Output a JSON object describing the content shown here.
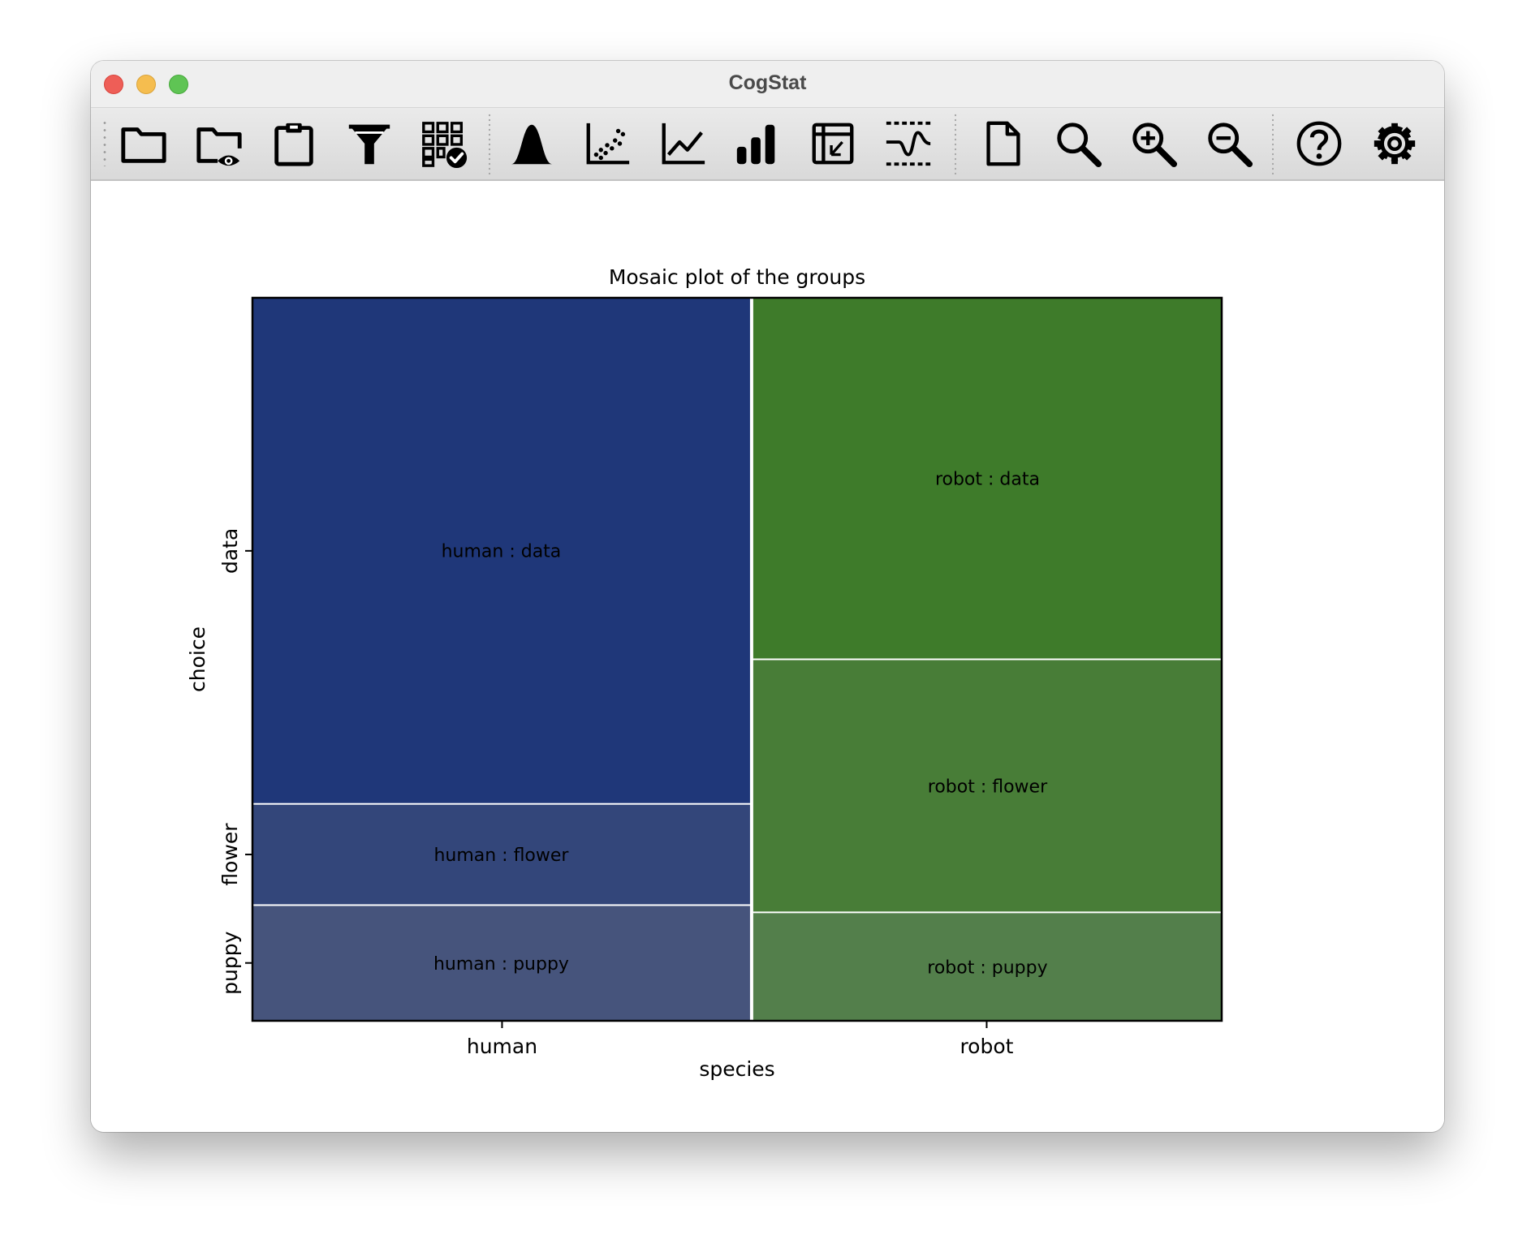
{
  "window": {
    "title": "CogStat"
  },
  "toolbar": {
    "groups": [
      [
        "open-data-icon",
        "open-demo-data-icon",
        "paste-data-icon",
        "filter-icon",
        "data-display-icon"
      ],
      [
        "distribution-icon",
        "scatterplot-icon",
        "line-chart-icon",
        "bar-chart-icon",
        "pivot-table-icon",
        "behavioral-data-icon"
      ],
      [
        "new-results-icon",
        "find-icon",
        "zoom-in-icon",
        "zoom-out-icon"
      ],
      [
        "help-icon",
        "preferences-icon"
      ]
    ]
  },
  "chart_data": {
    "type": "mosaic",
    "title": "Mosaic plot of the groups",
    "xlabel": "species",
    "ylabel": "choice",
    "x_categories": [
      "human",
      "robot"
    ],
    "y_categories": [
      "puppy",
      "flower",
      "data"
    ],
    "x_proportions": [
      0.515,
      0.485
    ],
    "cells": [
      {
        "x": "human",
        "y": "puppy",
        "proportion": 0.16,
        "label": "human : puppy",
        "color": "#46547c"
      },
      {
        "x": "human",
        "y": "flower",
        "proportion": 0.14,
        "label": "human : flower",
        "color": "#33467a"
      },
      {
        "x": "human",
        "y": "data",
        "proportion": 0.7,
        "label": "human : data",
        "color": "#1f3779"
      },
      {
        "x": "robot",
        "y": "puppy",
        "proportion": 0.15,
        "label": "robot : puppy",
        "color": "#537f4b"
      },
      {
        "x": "robot",
        "y": "flower",
        "proportion": 0.35,
        "label": "robot : flower",
        "color": "#487d37"
      },
      {
        "x": "robot",
        "y": "data",
        "proportion": 0.5,
        "label": "robot : data",
        "color": "#3e7b2a"
      }
    ],
    "grid": false,
    "legend": "none"
  }
}
